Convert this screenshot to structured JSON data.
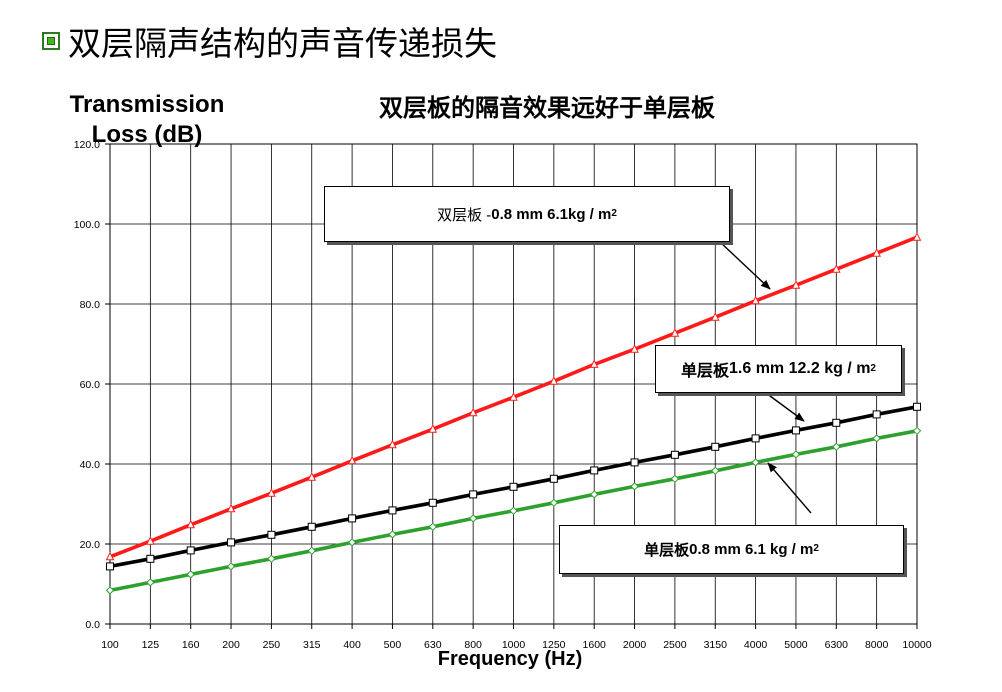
{
  "slide": {
    "title": "双层隔声结构的声音传递损失"
  },
  "chart_data": {
    "type": "line",
    "title": "双层板的隔音效果远好于单层板",
    "ylabel": "Transmission Loss (dB)",
    "xlabel": "Frequency (Hz)",
    "categories": [
      "100",
      "125",
      "160",
      "200",
      "250",
      "315",
      "400",
      "500",
      "630",
      "800",
      "1000",
      "1250",
      "1600",
      "2000",
      "2500",
      "3150",
      "4000",
      "5000",
      "6300",
      "8000",
      "10000"
    ],
    "ylim": [
      0,
      120
    ],
    "yticks": [
      "0.0",
      "20.0",
      "40.0",
      "60.0",
      "80.0",
      "100.0",
      "120.0"
    ],
    "ytick_values": [
      0,
      20,
      40,
      60,
      80,
      100,
      120
    ],
    "grid": true,
    "series": [
      {
        "name": "双层板 - 0.8 mm 6.1kg / m²",
        "color": "#ff1a1a",
        "marker": "triangle",
        "values": [
          16.8,
          20.7,
          24.8,
          28.8,
          32.7,
          36.7,
          40.8,
          44.8,
          48.7,
          52.8,
          56.7,
          60.7,
          64.9,
          68.7,
          72.7,
          76.7,
          80.8,
          84.7,
          88.7,
          92.7,
          96.7
        ]
      },
      {
        "name": "单层板 1.6 mm 12.2 kg / m²",
        "color": "#000000",
        "marker": "square",
        "values": [
          14.4,
          16.3,
          18.4,
          20.4,
          22.3,
          24.3,
          26.4,
          28.4,
          30.3,
          32.4,
          34.3,
          36.3,
          38.4,
          40.4,
          42.3,
          44.3,
          46.4,
          48.4,
          50.3,
          52.4,
          54.3
        ]
      },
      {
        "name": "单层板 0.8 mm 6.1 kg / m²",
        "color": "#2ea02e",
        "marker": "diamond",
        "values": [
          8.4,
          10.4,
          12.4,
          14.4,
          16.3,
          18.3,
          20.4,
          22.4,
          24.3,
          26.4,
          28.3,
          30.3,
          32.4,
          34.4,
          36.3,
          38.3,
          40.4,
          42.4,
          44.3,
          46.4,
          48.3
        ]
      }
    ],
    "annotations": {
      "double": {
        "prefix": "双层板 - ",
        "spec": "0.8 mm 6.1kg / m",
        "sup": "2"
      },
      "single_thick": {
        "prefix": "单层板 ",
        "spec": "1.6 mm 12.2 kg / m",
        "sup": "2"
      },
      "single_thin": {
        "prefix": "单层板 ",
        "spec": "0.8 mm 6.1 kg / m",
        "sup": "2"
      }
    },
    "ylabel_lines": [
      "Transmission",
      "Loss (dB)"
    ]
  }
}
